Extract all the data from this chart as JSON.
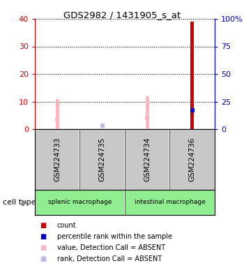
{
  "title": "GDS2982 / 1431905_s_at",
  "samples": [
    "GSM224733",
    "GSM224735",
    "GSM224734",
    "GSM224736"
  ],
  "cell_types": [
    {
      "label": "splenic macrophage",
      "span": [
        0,
        2
      ],
      "color": "#90EE90"
    },
    {
      "label": "intestinal macrophage",
      "span": [
        2,
        4
      ],
      "color": "#90EE90"
    }
  ],
  "bar_values": [
    11,
    0.3,
    12,
    39
  ],
  "bar_colors": [
    "#FFB6C1",
    "#FFB6C1",
    "#FFB6C1",
    "#CC0000"
  ],
  "rank_values": [
    9,
    3,
    10,
    17
  ],
  "rank_colors": [
    "#FFB6C1",
    "#BBBBEE",
    "#FFB6C1",
    "#0000CC"
  ],
  "rank_is_absent": [
    true,
    true,
    true,
    false
  ],
  "value_is_absent": [
    true,
    true,
    true,
    false
  ],
  "ylim_left": [
    0,
    40
  ],
  "ylim_right": [
    0,
    100
  ],
  "yticks_left": [
    0,
    10,
    20,
    30,
    40
  ],
  "yticks_right": [
    0,
    25,
    50,
    75,
    100
  ],
  "ytick_labels_left": [
    "0",
    "10",
    "20",
    "30",
    "40"
  ],
  "ytick_labels_right": [
    "0",
    "25",
    "50",
    "75",
    "100%"
  ],
  "left_axis_color": "#CC0000",
  "right_axis_color": "#0000CC",
  "bg_color": "#FFFFFF",
  "plot_bg_color": "#FFFFFF",
  "sample_box_color": "#C8C8C8",
  "legend_items": [
    {
      "label": "count",
      "color": "#CC0000"
    },
    {
      "label": "percentile rank within the sample",
      "color": "#0000CC"
    },
    {
      "label": "value, Detection Call = ABSENT",
      "color": "#FFB6C1"
    },
    {
      "label": "rank, Detection Call = ABSENT",
      "color": "#BBBBEE"
    }
  ],
  "bar_width": 0.08,
  "rank_marker_size": 4
}
